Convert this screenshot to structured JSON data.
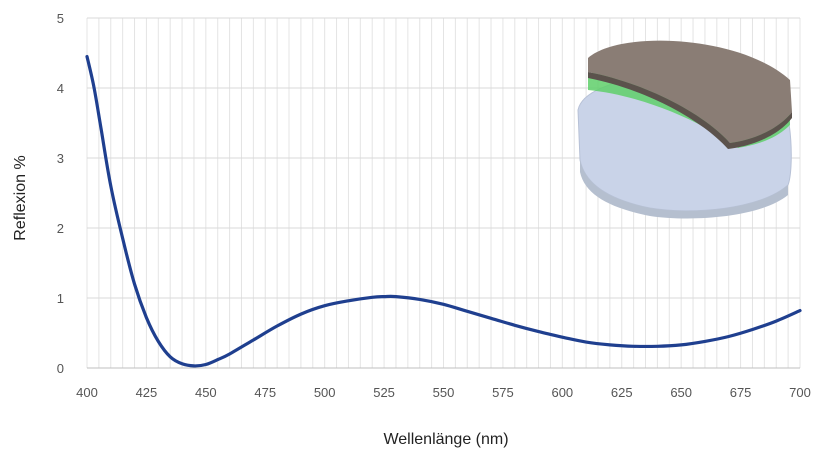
{
  "chart_data": {
    "type": "line",
    "title": "",
    "xlabel": "Wellenlänge (nm)",
    "ylabel": "Reflexion %",
    "xlim": [
      400,
      700
    ],
    "ylim": [
      0,
      5
    ],
    "x_ticks": [
      "400",
      "425",
      "450",
      "475",
      "500",
      "525",
      "550",
      "575",
      "600",
      "625",
      "650",
      "675",
      "700"
    ],
    "y_ticks": [
      "0",
      "1",
      "2",
      "3",
      "4",
      "5"
    ],
    "grid": true,
    "legend": "none",
    "series": [
      {
        "color": "#1f3f8f",
        "x": [
          400,
          403,
          406,
          410,
          415,
          420,
          425,
          430,
          435,
          440,
          445,
          450,
          455,
          460,
          470,
          480,
          490,
          500,
          510,
          520,
          525,
          530,
          540,
          550,
          560,
          570,
          580,
          590,
          600,
          610,
          620,
          630,
          640,
          650,
          660,
          670,
          680,
          690,
          700
        ],
        "y": [
          4.45,
          4.0,
          3.4,
          2.6,
          1.85,
          1.2,
          0.72,
          0.38,
          0.16,
          0.06,
          0.03,
          0.05,
          0.12,
          0.2,
          0.4,
          0.6,
          0.77,
          0.89,
          0.96,
          1.01,
          1.02,
          1.02,
          0.98,
          0.91,
          0.81,
          0.71,
          0.61,
          0.52,
          0.44,
          0.37,
          0.33,
          0.31,
          0.31,
          0.33,
          0.38,
          0.45,
          0.55,
          0.67,
          0.82
        ]
      }
    ]
  },
  "inset_image": {
    "icon": "lens-coating-layers-icon",
    "colors": {
      "top": "#8a7d75",
      "middle": "#5fcf6a",
      "bottom": "#c9d3e8"
    }
  }
}
